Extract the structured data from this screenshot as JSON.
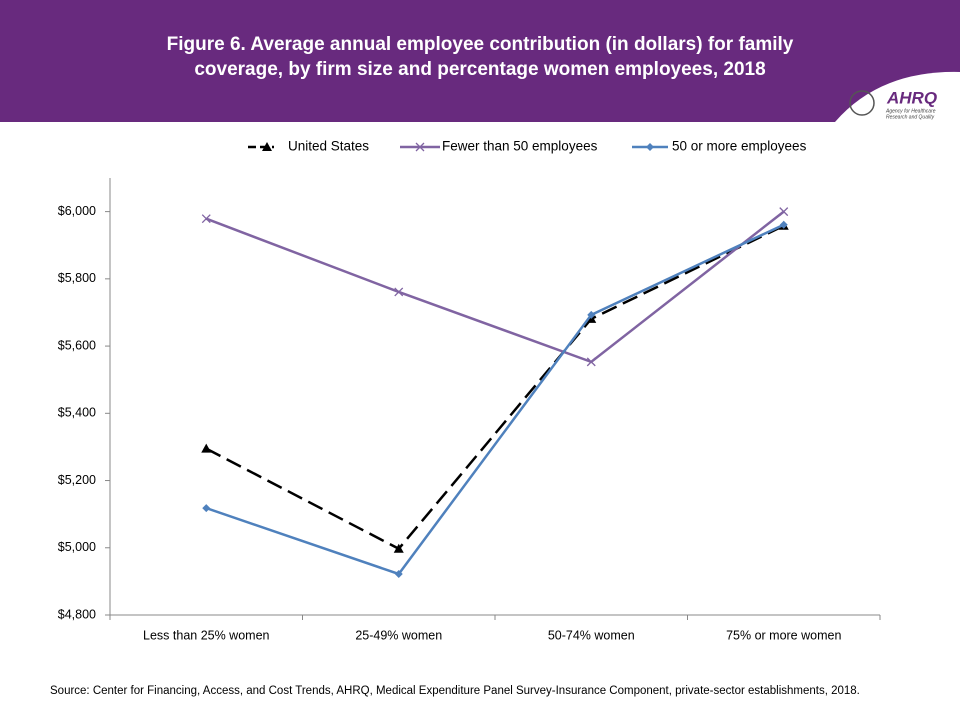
{
  "chart_data": {
    "type": "line",
    "title": "Figure 6. Average annual employee contribution (in dollars) for family",
    "subtitle": "coverage, by firm size and percentage women employees, 2018",
    "logo": "AHRQ",
    "logo_tagline": [
      "Agency for Healthcare",
      "Research and Quality"
    ],
    "source": "Source: Center for Financing, Access, and Cost Trends, AHRQ, Medical Expenditure Panel Survey-Insurance Component, private-sector establishments, 2018.",
    "categories": [
      "Less than 25% women",
      "25-49% women",
      "50-74% women",
      "75% or more women"
    ],
    "series": [
      {
        "name": "United States",
        "color": "#000000",
        "marker": "triangle",
        "dash": true,
        "values": [
          5295,
          4997,
          5681,
          5958
        ]
      },
      {
        "name": "Fewer than 50 employees",
        "color": "#8064a2",
        "marker": "x",
        "dash": false,
        "values": [
          5979,
          5761,
          5553,
          6000
        ]
      },
      {
        "name": "50 or more employees",
        "color": "#4f81bd",
        "marker": "diamond",
        "dash": false,
        "values": [
          5118,
          4922,
          5693,
          5961
        ]
      }
    ],
    "ylim": [
      4800,
      6100
    ],
    "yticks": [
      {
        "value": 4800,
        "label": "$4,800"
      },
      {
        "value": 5000,
        "label": "$5,000"
      },
      {
        "value": 5200,
        "label": "$5,200"
      },
      {
        "value": 5400,
        "label": "$5,400"
      },
      {
        "value": 5600,
        "label": "$5,600"
      },
      {
        "value": 5800,
        "label": "$5,800"
      },
      {
        "value": 6000,
        "label": "$6,000"
      }
    ],
    "grid": false,
    "legend": "top"
  }
}
